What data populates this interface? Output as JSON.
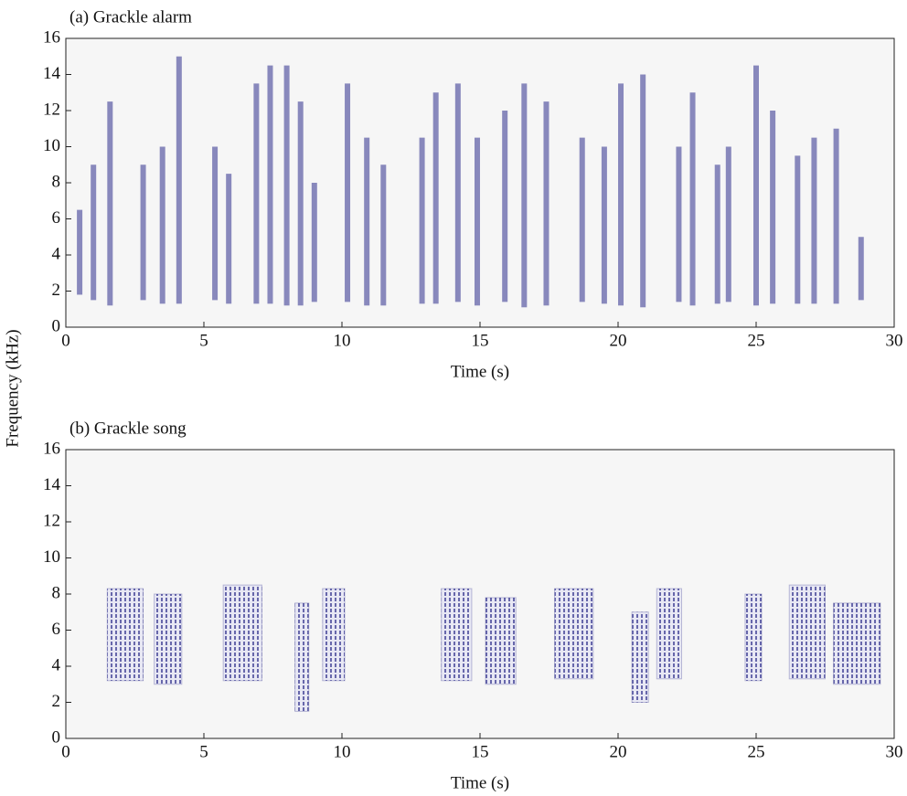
{
  "chart_data": [
    {
      "type": "spectrogram",
      "title": "(a) Grackle alarm",
      "xlabel": "Time (s)",
      "ylabel": "Frequency (kHz)",
      "xlim": [
        0,
        30
      ],
      "xticks": [
        0,
        5,
        10,
        15,
        20,
        25,
        30
      ],
      "ylim": [
        0,
        16
      ],
      "yticks": [
        0,
        2,
        4,
        6,
        8,
        10,
        12,
        14,
        16
      ],
      "color": "#2e2e8c",
      "x": [
        0.5,
        1.0,
        1.6,
        2.8,
        3.5,
        4.1,
        5.4,
        5.9,
        6.9,
        7.4,
        8.0,
        8.5,
        9.0,
        10.2,
        10.9,
        11.5,
        12.9,
        13.4,
        14.2,
        14.9,
        15.9,
        16.6,
        17.4,
        18.7,
        19.5,
        20.1,
        20.9,
        22.2,
        22.7,
        23.6,
        24.0,
        25.0,
        25.6,
        26.5,
        27.1,
        27.9,
        28.8
      ],
      "y_low": [
        1.8,
        1.5,
        1.2,
        1.5,
        1.3,
        1.3,
        1.5,
        1.3,
        1.3,
        1.3,
        1.2,
        1.2,
        1.4,
        1.4,
        1.2,
        1.2,
        1.3,
        1.3,
        1.4,
        1.2,
        1.4,
        1.1,
        1.2,
        1.4,
        1.3,
        1.2,
        1.1,
        1.4,
        1.2,
        1.3,
        1.4,
        1.2,
        1.3,
        1.3,
        1.3,
        1.3,
        1.5
      ],
      "y_high": [
        6.5,
        9.0,
        12.5,
        9.0,
        10.0,
        15.0,
        10.0,
        8.5,
        13.5,
        14.5,
        14.5,
        12.5,
        8.0,
        13.5,
        10.5,
        9.0,
        10.5,
        13.0,
        13.5,
        10.5,
        12.0,
        13.5,
        12.5,
        10.5,
        10.0,
        13.5,
        14.0,
        10.0,
        13.0,
        9.0,
        10.0,
        14.5,
        12.0,
        9.5,
        10.5,
        11.0,
        5.0
      ]
    },
    {
      "type": "spectrogram",
      "title": "(b) Grackle song",
      "xlabel": "Time (s)",
      "xlim": [
        0,
        30
      ],
      "xticks": [
        0,
        5,
        10,
        15,
        20,
        25,
        30
      ],
      "ylim": [
        0,
        16
      ],
      "yticks": [
        0,
        2,
        4,
        6,
        8,
        10,
        12,
        14,
        16
      ],
      "color": "#2e2e8c",
      "x_start": [
        1.5,
        3.2,
        5.7,
        8.3,
        9.3,
        13.6,
        15.2,
        17.7,
        20.5,
        21.4,
        24.6,
        26.2,
        27.8
      ],
      "x_end": [
        2.8,
        4.2,
        7.1,
        8.8,
        10.1,
        14.7,
        16.3,
        19.1,
        21.1,
        22.3,
        25.2,
        27.5,
        29.5
      ],
      "y_low": [
        3.2,
        3.0,
        3.2,
        1.5,
        3.2,
        3.2,
        3.0,
        3.3,
        2.0,
        3.3,
        3.2,
        3.3,
        3.0
      ],
      "y_high": [
        8.3,
        8.0,
        8.5,
        7.5,
        8.3,
        8.3,
        7.8,
        8.3,
        7.0,
        8.3,
        8.0,
        8.5,
        7.5
      ]
    }
  ]
}
